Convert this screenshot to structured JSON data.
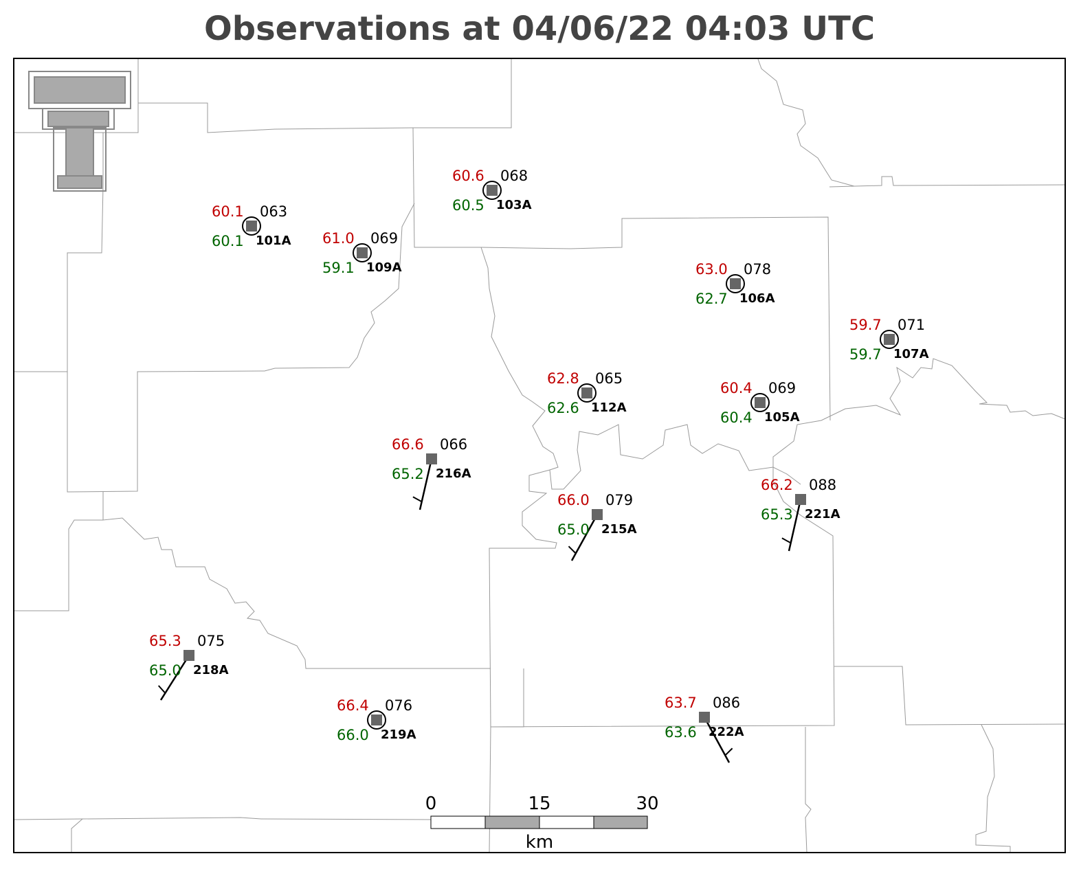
{
  "title": "Observations at 04/06/22 04:03 UTC",
  "stations": [
    {
      "id": "101A",
      "temperature": "60.1",
      "dewpoint": "60.1",
      "pressure": "063"
    },
    {
      "id": "109A",
      "temperature": "61.0",
      "dewpoint": "59.1",
      "pressure": "069"
    },
    {
      "id": "103A",
      "temperature": "60.6",
      "dewpoint": "60.5",
      "pressure": "068"
    },
    {
      "id": "106A",
      "temperature": "63.0",
      "dewpoint": "62.7",
      "pressure": "078"
    },
    {
      "id": "107A",
      "temperature": "59.7",
      "dewpoint": "59.7",
      "pressure": "071"
    },
    {
      "id": "112A",
      "temperature": "62.8",
      "dewpoint": "62.6",
      "pressure": "065"
    },
    {
      "id": "105A",
      "temperature": "60.4",
      "dewpoint": "60.4",
      "pressure": "069"
    },
    {
      "id": "216A",
      "temperature": "66.6",
      "dewpoint": "65.2",
      "pressure": "066"
    },
    {
      "id": "215A",
      "temperature": "66.0",
      "dewpoint": "65.0",
      "pressure": "079"
    },
    {
      "id": "221A",
      "temperature": "66.2",
      "dewpoint": "65.3",
      "pressure": "088"
    },
    {
      "id": "218A",
      "temperature": "65.3",
      "dewpoint": "65.0",
      "pressure": "075"
    },
    {
      "id": "219A",
      "temperature": "66.4",
      "dewpoint": "66.0",
      "pressure": "076"
    },
    {
      "id": "222A",
      "temperature": "63.7",
      "dewpoint": "63.6",
      "pressure": "086"
    }
  ],
  "scale_bar": {
    "ticks": [
      0,
      15,
      30
    ],
    "unit": "km"
  }
}
